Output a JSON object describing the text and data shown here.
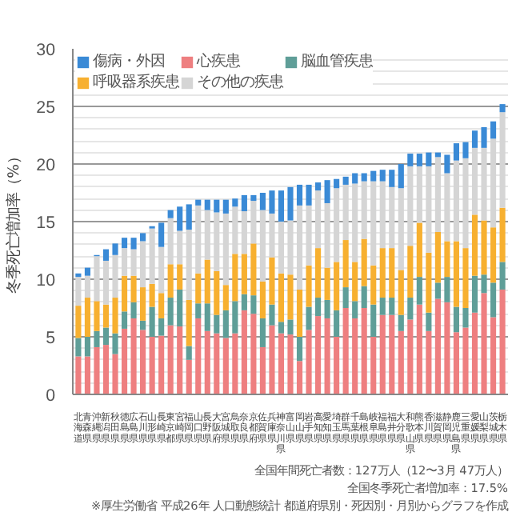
{
  "chart_data": {
    "type": "bar",
    "stacked": true,
    "ylabel": "冬季死亡増加率（%）",
    "categories": [
      "北海道",
      "青森県",
      "沖縄県",
      "新潟県",
      "秋田県",
      "徳島県",
      "広島県",
      "石川県",
      "山形県",
      "長崎県",
      "東京都",
      "宮崎県",
      "福岡県",
      "山口県",
      "長野県",
      "大阪府",
      "宮城県",
      "鳥取県",
      "奈良県",
      "京都府",
      "佐賀県",
      "兵庫県",
      "神奈川県",
      "富山県",
      "岡山県",
      "岩手県",
      "高知県",
      "愛知県",
      "埼玉県",
      "群馬県",
      "千葉県",
      "島根県",
      "岐阜県",
      "福島県",
      "福井県",
      "大分県",
      "和歌山県",
      "熊本県",
      "香川県",
      "滋賀県",
      "静岡県",
      "鹿児島県",
      "三重県",
      "愛媛県",
      "山梨県",
      "茨城県",
      "栃木県"
    ],
    "series": [
      {
        "name": "心疾患",
        "color": "#ee7f80",
        "values": [
          3.3,
          3.3,
          4.1,
          4.3,
          3.5,
          5.7,
          6.6,
          5.6,
          5.0,
          5.1,
          6.0,
          5.9,
          3.0,
          6.6,
          5.5,
          5.3,
          4.9,
          5.3,
          7.3,
          7.0,
          4.1,
          6.0,
          5.3,
          5.2,
          2.9,
          5.6,
          6.8,
          6.6,
          5.0,
          7.5,
          6.6,
          7.5,
          5.0,
          6.9,
          6.9,
          5.5,
          6.5,
          7.8,
          5.5,
          8.3,
          8.0,
          5.4,
          5.8,
          7.1,
          8.8,
          6.7,
          9.1
        ]
      },
      {
        "name": "脳血管疾患",
        "color": "#5f9e98",
        "values": [
          1.6,
          1.7,
          1.4,
          1.5,
          1.8,
          1.5,
          1.4,
          0.8,
          2.6,
          1.5,
          2.4,
          3.2,
          1.2,
          1.3,
          2.4,
          1.6,
          2.4,
          2.8,
          1.4,
          1.6,
          2.5,
          1.8,
          1.0,
          1.3,
          2.1,
          2.0,
          1.6,
          1.6,
          2.3,
          1.8,
          1.5,
          1.9,
          2.8,
          1.5,
          1.5,
          1.4,
          1.9,
          2.4,
          1.6,
          1.4,
          2.2,
          2.2,
          1.7,
          3.2,
          1.6,
          3.0,
          2.4
        ]
      },
      {
        "name": "呼吸器系疾患",
        "color": "#f7b030",
        "values": [
          2.8,
          3.4,
          2.6,
          2.0,
          3.1,
          3.1,
          2.3,
          2.9,
          2.0,
          2.2,
          2.9,
          2.2,
          4.0,
          2.6,
          3.8,
          3.8,
          2.2,
          4.1,
          3.5,
          4.5,
          3.2,
          4.1,
          4.2,
          3.9,
          4.1,
          3.6,
          4.3,
          2.8,
          4.2,
          4.1,
          3.4,
          4.1,
          3.4,
          4.3,
          4.3,
          3.9,
          4.5,
          4.7,
          5.2,
          4.4,
          3.1,
          5.7,
          5.2,
          5.3,
          4.7,
          4.8,
          4.7
        ]
      },
      {
        "name": "その他の疾患",
        "color": "#d5d5d5",
        "values": [
          2.5,
          1.9,
          3.9,
          3.8,
          3.7,
          2.4,
          2.3,
          4.0,
          4.8,
          4.0,
          4.0,
          2.9,
          6.1,
          5.9,
          4.3,
          5.1,
          6.2,
          4.1,
          3.7,
          3.7,
          6.2,
          3.8,
          4.5,
          4.7,
          7.3,
          5.2,
          5.0,
          5.6,
          6.4,
          4.8,
          6.8,
          5.0,
          7.3,
          5.8,
          5.3,
          7.1,
          6.9,
          4.9,
          7.5,
          6.5,
          5.9,
          7.0,
          7.8,
          5.8,
          6.3,
          7.7,
          8.3
        ]
      },
      {
        "name": "傷病・外因",
        "color": "#3a8ad6",
        "values": [
          0.3,
          0.7,
          0.1,
          1.0,
          1.0,
          0.9,
          1.0,
          0.7,
          0.2,
          2.1,
          0.7,
          2.1,
          2.2,
          0.5,
          0.9,
          1.1,
          1.2,
          0.7,
          1.4,
          0.5,
          1.5,
          2.0,
          2.7,
          2.9,
          1.8,
          1.8,
          0.7,
          2.0,
          0.8,
          0.7,
          0.9,
          0.7,
          0.9,
          1.0,
          1.5,
          2.1,
          1.1,
          1.1,
          1.2,
          0.4,
          1.6,
          1.5,
          1.4,
          1.5,
          1.8,
          1.5,
          0.7
        ]
      }
    ],
    "ylim": [
      0,
      30
    ],
    "yticks": [
      0,
      5,
      10,
      15,
      20,
      25,
      30
    ],
    "grid": "y",
    "legend": "top left",
    "annotations": [
      "全国年間死亡者数：127万人（12〜3月 47万人）",
      "全国冬季死亡者増加率：17.5%",
      "※厚生労働省 平成26年 人口動態統計 都道府県別・死因別・月別からグラフを作成"
    ]
  }
}
